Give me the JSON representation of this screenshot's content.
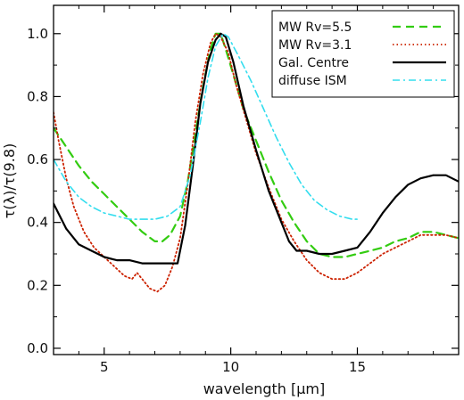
{
  "chart_data": {
    "type": "line",
    "xlabel": "wavelength [μm]",
    "ylabel": "τ(λ)/τ(9.8)",
    "xlim": [
      3,
      19
    ],
    "ylim": [
      -0.02,
      1.09
    ],
    "x_ticks": [
      5,
      10,
      15
    ],
    "x_tick_labels": [
      "5",
      "10",
      "15"
    ],
    "y_ticks": [
      0.0,
      0.2,
      0.4,
      0.6,
      0.8,
      1.0
    ],
    "y_tick_labels": [
      "0.0",
      "0.2",
      "0.4",
      "0.6",
      "0.8",
      "1.0"
    ],
    "grid": false,
    "legend_position": "top-right",
    "series": [
      {
        "name": "MW Rv=5.5",
        "color": "#33cc11",
        "dash": "dashed",
        "points": [
          [
            3.0,
            0.7
          ],
          [
            3.5,
            0.64
          ],
          [
            4.0,
            0.58
          ],
          [
            4.5,
            0.53
          ],
          [
            5.0,
            0.49
          ],
          [
            5.5,
            0.45
          ],
          [
            6.0,
            0.41
          ],
          [
            6.5,
            0.37
          ],
          [
            7.0,
            0.34
          ],
          [
            7.3,
            0.34
          ],
          [
            7.6,
            0.36
          ],
          [
            8.0,
            0.42
          ],
          [
            8.3,
            0.53
          ],
          [
            8.6,
            0.68
          ],
          [
            8.9,
            0.83
          ],
          [
            9.2,
            0.95
          ],
          [
            9.4,
            1.0
          ],
          [
            9.6,
            1.0
          ],
          [
            9.8,
            0.95
          ],
          [
            10.1,
            0.87
          ],
          [
            10.5,
            0.76
          ],
          [
            11.0,
            0.66
          ],
          [
            11.5,
            0.56
          ],
          [
            12.0,
            0.47
          ],
          [
            12.5,
            0.4
          ],
          [
            13.0,
            0.34
          ],
          [
            13.5,
            0.3
          ],
          [
            14.0,
            0.29
          ],
          [
            14.5,
            0.29
          ],
          [
            15.0,
            0.3
          ],
          [
            15.5,
            0.31
          ],
          [
            16.0,
            0.32
          ],
          [
            16.5,
            0.34
          ],
          [
            17.0,
            0.35
          ],
          [
            17.5,
            0.37
          ],
          [
            18.0,
            0.37
          ],
          [
            18.5,
            0.36
          ],
          [
            19.0,
            0.35
          ]
        ]
      },
      {
        "name": "MW Rv=3.1",
        "color": "#cc2200",
        "dash": "dotted",
        "points": [
          [
            3.0,
            0.75
          ],
          [
            3.2,
            0.66
          ],
          [
            3.5,
            0.54
          ],
          [
            3.8,
            0.45
          ],
          [
            4.2,
            0.37
          ],
          [
            4.6,
            0.32
          ],
          [
            5.0,
            0.29
          ],
          [
            5.4,
            0.26
          ],
          [
            5.8,
            0.23
          ],
          [
            6.1,
            0.22
          ],
          [
            6.3,
            0.24
          ],
          [
            6.5,
            0.22
          ],
          [
            6.8,
            0.19
          ],
          [
            7.1,
            0.18
          ],
          [
            7.4,
            0.2
          ],
          [
            7.7,
            0.26
          ],
          [
            8.0,
            0.35
          ],
          [
            8.3,
            0.52
          ],
          [
            8.6,
            0.72
          ],
          [
            8.9,
            0.87
          ],
          [
            9.2,
            0.97
          ],
          [
            9.4,
            1.0
          ],
          [
            9.6,
            0.99
          ],
          [
            9.9,
            0.94
          ],
          [
            10.2,
            0.84
          ],
          [
            10.6,
            0.73
          ],
          [
            11.0,
            0.62
          ],
          [
            11.5,
            0.51
          ],
          [
            12.0,
            0.41
          ],
          [
            12.5,
            0.34
          ],
          [
            13.0,
            0.28
          ],
          [
            13.5,
            0.24
          ],
          [
            14.0,
            0.22
          ],
          [
            14.5,
            0.22
          ],
          [
            15.0,
            0.24
          ],
          [
            15.5,
            0.27
          ],
          [
            16.0,
            0.3
          ],
          [
            16.5,
            0.32
          ],
          [
            17.0,
            0.34
          ],
          [
            17.5,
            0.36
          ],
          [
            18.0,
            0.36
          ],
          [
            18.5,
            0.36
          ],
          [
            19.0,
            0.35
          ]
        ]
      },
      {
        "name": "Gal. Centre",
        "color": "#000000",
        "dash": "solid",
        "points": [
          [
            3.0,
            0.46
          ],
          [
            3.5,
            0.38
          ],
          [
            4.0,
            0.33
          ],
          [
            4.5,
            0.31
          ],
          [
            5.0,
            0.29
          ],
          [
            5.5,
            0.28
          ],
          [
            6.0,
            0.28
          ],
          [
            6.5,
            0.27
          ],
          [
            7.0,
            0.27
          ],
          [
            7.5,
            0.27
          ],
          [
            7.9,
            0.27
          ],
          [
            8.2,
            0.39
          ],
          [
            8.5,
            0.58
          ],
          [
            8.8,
            0.78
          ],
          [
            9.1,
            0.91
          ],
          [
            9.4,
            0.98
          ],
          [
            9.6,
            1.0
          ],
          [
            9.8,
            0.99
          ],
          [
            10.1,
            0.91
          ],
          [
            10.5,
            0.77
          ],
          [
            11.0,
            0.63
          ],
          [
            11.5,
            0.5
          ],
          [
            12.0,
            0.4
          ],
          [
            12.3,
            0.34
          ],
          [
            12.6,
            0.31
          ],
          [
            13.0,
            0.31
          ],
          [
            13.5,
            0.3
          ],
          [
            14.0,
            0.3
          ],
          [
            14.5,
            0.31
          ],
          [
            15.0,
            0.32
          ],
          [
            15.5,
            0.37
          ],
          [
            16.0,
            0.43
          ],
          [
            16.5,
            0.48
          ],
          [
            17.0,
            0.52
          ],
          [
            17.5,
            0.54
          ],
          [
            18.0,
            0.55
          ],
          [
            18.5,
            0.55
          ],
          [
            19.0,
            0.53
          ]
        ]
      },
      {
        "name": "diffuse ISM",
        "color": "#33ddee",
        "dash": "dashdot",
        "points": [
          [
            3.0,
            0.6
          ],
          [
            3.5,
            0.53
          ],
          [
            4.0,
            0.48
          ],
          [
            4.5,
            0.45
          ],
          [
            5.0,
            0.43
          ],
          [
            5.5,
            0.42
          ],
          [
            6.0,
            0.41
          ],
          [
            6.5,
            0.41
          ],
          [
            7.0,
            0.41
          ],
          [
            7.5,
            0.42
          ],
          [
            8.0,
            0.45
          ],
          [
            8.4,
            0.55
          ],
          [
            8.8,
            0.72
          ],
          [
            9.1,
            0.86
          ],
          [
            9.4,
            0.96
          ],
          [
            9.7,
            1.0
          ],
          [
            9.9,
            0.99
          ],
          [
            10.3,
            0.93
          ],
          [
            10.8,
            0.85
          ],
          [
            11.3,
            0.76
          ],
          [
            11.8,
            0.67
          ],
          [
            12.3,
            0.59
          ],
          [
            12.8,
            0.52
          ],
          [
            13.3,
            0.47
          ],
          [
            13.8,
            0.44
          ],
          [
            14.3,
            0.42
          ],
          [
            14.8,
            0.41
          ],
          [
            15.1,
            0.41
          ]
        ]
      }
    ]
  }
}
